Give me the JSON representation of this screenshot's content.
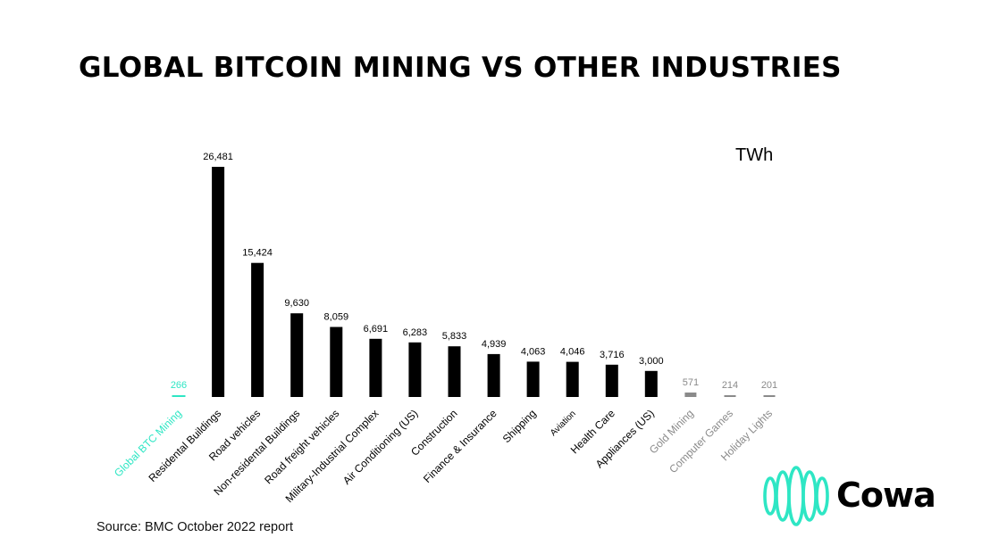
{
  "page": {
    "title": "GLOBAL BITCOIN MINING VS OTHER INDUSTRIES",
    "unit": "TWh",
    "source": "Source: BMC October 2022 report",
    "brand": "Cowa"
  },
  "colors": {
    "highlight": "#2ee6c4",
    "primary": "#000000",
    "muted": "#8a8a8a",
    "brand_accent": "#2ee6c4"
  },
  "chart_data": {
    "type": "bar",
    "title": "GLOBAL BITCOIN MINING VS OTHER INDUSTRIES",
    "ylabel": "TWh",
    "xlabel": "",
    "ylim": [
      0,
      26481
    ],
    "grid": false,
    "categories": [
      "Global BTC Mining",
      "Residental Buildings",
      "Road vehicles",
      "Non-residental Buildings",
      "Road freight vehicles",
      "Military-Industrial Complex",
      "Air Conditioning (US)",
      "Construction",
      "Finance & Insurance",
      "Shipping",
      "Aviation",
      "Health Care",
      "Appliances (US)",
      "Gold Mining",
      "Computer Games",
      "Holiday Lights"
    ],
    "values": [
      266,
      26481,
      15424,
      9630,
      8059,
      6691,
      6283,
      5833,
      4939,
      4063,
      4046,
      3716,
      3000,
      571,
      214,
      201
    ],
    "value_labels": [
      "266",
      "26,481",
      "15,424",
      "9,630",
      "8,059",
      "6,691",
      "6,283",
      "5,833",
      "4,939",
      "4,063",
      "4,046",
      "3,716",
      "3,000",
      "571",
      "214",
      "201"
    ],
    "groups": [
      "highlight",
      "primary",
      "primary",
      "primary",
      "primary",
      "primary",
      "primary",
      "primary",
      "primary",
      "primary",
      "primary",
      "primary",
      "primary",
      "muted",
      "muted",
      "muted"
    ]
  }
}
